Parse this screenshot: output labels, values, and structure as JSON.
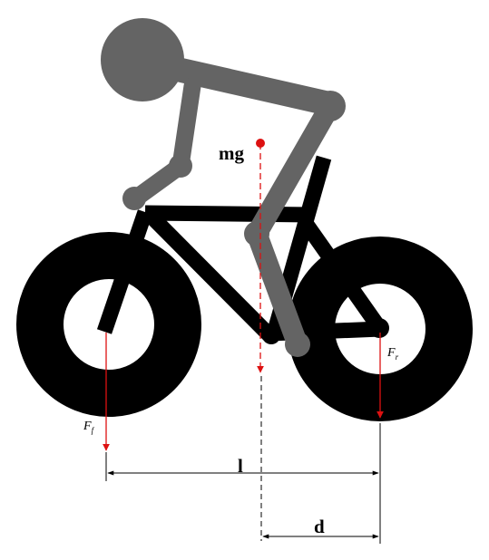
{
  "diagram": {
    "labels": {
      "weight": "mg",
      "front_force": "F",
      "front_force_subscript": "f",
      "rear_force": "F",
      "rear_force_subscript": "r",
      "wheelbase": "l",
      "cg_offset": "d"
    },
    "colors": {
      "frame": "#000000",
      "rider": "#646464",
      "force_arrow": "#dd1111",
      "dimension_line": "#000000",
      "background": "#ffffff"
    }
  }
}
